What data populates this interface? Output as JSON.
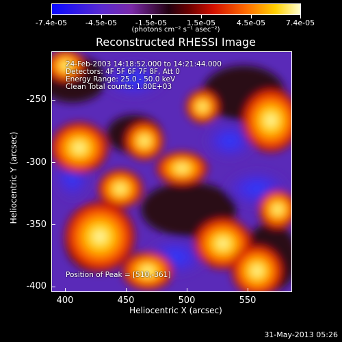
{
  "colorbar": {
    "labels": [
      "-7.4e-05",
      "-4.5e-05",
      "-1.5e-05",
      "1.5e-05",
      "4.5e-05",
      "7.4e-05"
    ],
    "unit": "(photons cm⁻² s⁻¹ asec⁻²)",
    "colors": [
      "#0a0aff",
      "#5a2ad0",
      "#7a2aa8",
      "#220010",
      "#6a0000",
      "#d21000",
      "#ff6a00",
      "#ffd000",
      "#ffffd0"
    ]
  },
  "title": "Reconstructed RHESSI Image",
  "annotations": {
    "time": "24-Feb-2003 14:18:52.000 to 14:21:44.000",
    "detectors": "Detectors: 4F 5F 6F 7F 8F, Att 0",
    "energy": "Energy Range: 25.0 - 50.0 keV",
    "clean": "Clean     Total counts: 1.80E+03",
    "peak": "Position of Peak = [510,-361]"
  },
  "chart_data": {
    "type": "heatmap",
    "title": "Reconstructed RHESSI Image",
    "xlabel": "Heliocentric X (arcsec)",
    "ylabel": "Heliocentric Y (arcsec)",
    "xlim": [
      387,
      584
    ],
    "ylim": [
      -405,
      -210
    ],
    "x_ticks": [
      "400",
      "450",
      "500",
      "550"
    ],
    "y_ticks": [
      "-250",
      "-300",
      "-350",
      "-400"
    ],
    "value_range": [
      -7.4e-05,
      7.4e-05
    ],
    "peak": [
      510,
      -361
    ]
  },
  "footer_date": "31-May-2013 05:26"
}
